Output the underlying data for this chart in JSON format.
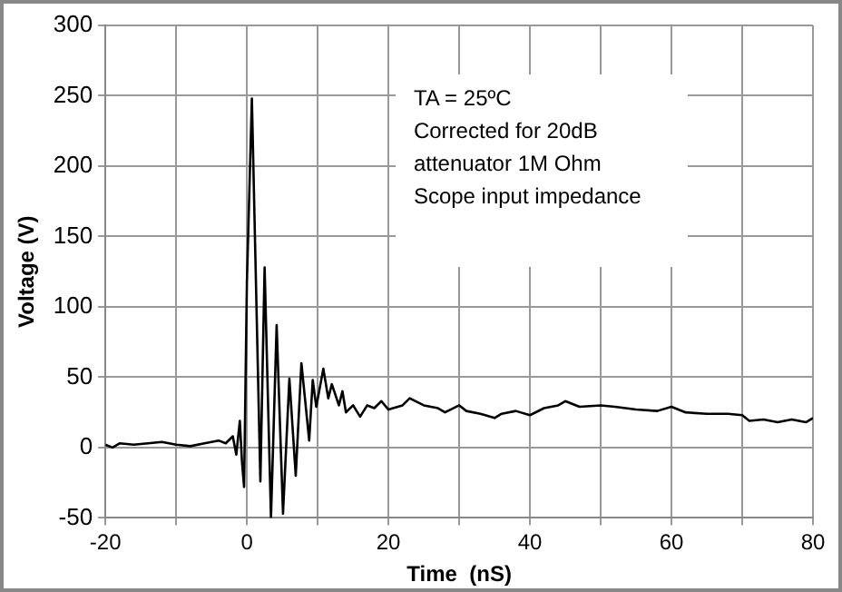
{
  "chart_data": {
    "type": "line",
    "xlabel": "Time  (nS)",
    "ylabel": "Voltage (V)",
    "annotations": [
      "TA = 25ºC",
      "Corrected for 20dB",
      "attenuator 1M Ohm",
      "Scope input impedance"
    ],
    "x": [
      -20,
      -19,
      -18,
      -16,
      -14,
      -12,
      -10,
      -8,
      -6,
      -4,
      -3,
      -2,
      -1.5,
      -1,
      -0.7,
      -0.4,
      0,
      0.7,
      1.9,
      2.5,
      3.4,
      4.2,
      5.1,
      6,
      6.9,
      7.7,
      8.8,
      9.3,
      9.8,
      10.8,
      11.5,
      12,
      13,
      13.5,
      14,
      15,
      16,
      17,
      18,
      19,
      20,
      22,
      23,
      25,
      27,
      28,
      30,
      31,
      33,
      35,
      36,
      38,
      40,
      42,
      44,
      45,
      47,
      50,
      52,
      55,
      58,
      60,
      62,
      65,
      68,
      70,
      71,
      73,
      75,
      77,
      79,
      80
    ],
    "series": [
      {
        "color": "#000000",
        "values": [
          2,
          0,
          3,
          2,
          3,
          4,
          2,
          1,
          3,
          5,
          3,
          8,
          -5,
          19,
          -10,
          -28,
          118,
          248,
          -24,
          128,
          -50,
          87,
          -47,
          49,
          -20,
          60,
          5,
          48,
          29,
          56,
          35,
          45,
          30,
          40,
          25,
          30,
          22,
          30,
          28,
          33,
          27,
          30,
          35,
          30,
          28,
          25,
          30,
          26,
          24,
          21,
          24,
          26,
          23,
          28,
          30,
          33,
          29,
          30,
          29,
          27,
          26,
          29,
          25,
          24,
          24,
          23,
          19,
          20,
          18,
          20,
          18,
          21
        ]
      }
    ],
    "xlim": [
      -20,
      80
    ],
    "xticks": [
      -20,
      {
        "value": -10,
        "label": null
      },
      0,
      {
        "value": 10,
        "label": null
      },
      20,
      {
        "value": 30,
        "label": null
      },
      40,
      {
        "value": 50,
        "label": null
      },
      60,
      {
        "value": 70,
        "label": null
      },
      80
    ],
    "ylim": [
      -50,
      300
    ],
    "yticks": [
      -50,
      0,
      50,
      100,
      150,
      200,
      250,
      300
    ],
    "grid": true,
    "marker": "none",
    "line_style": "solid"
  }
}
